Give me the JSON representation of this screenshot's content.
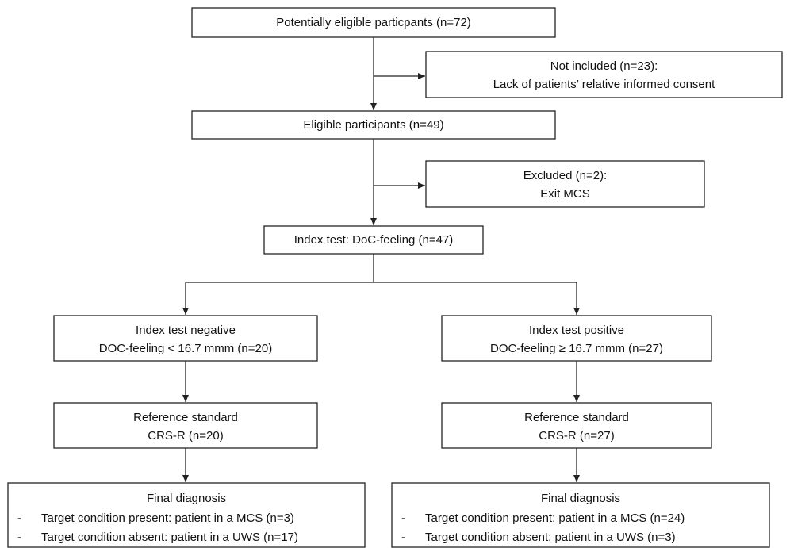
{
  "nodes": [
    {
      "lines": [
        "Potentially eligible particpants (n=72)"
      ]
    },
    {
      "lines": [
        "Not included (n=23):",
        "Lack of patients’ relative informed consent"
      ]
    },
    {
      "lines": [
        "Eligible participants (n=49)"
      ]
    },
    {
      "lines": [
        "Excluded (n=2):",
        "Exit MCS"
      ]
    },
    {
      "lines": [
        "Index test: DoC-feeling (n=47)"
      ]
    },
    {
      "lines": [
        "Index test negative",
        "DOC-feeling < 16.7 mmm (n=20)"
      ]
    },
    {
      "lines": [
        "Index test positive",
        "DOC-feeling ≥ 16.7 mmm (n=27)"
      ]
    },
    {
      "lines": [
        "Reference standard",
        "CRS-R (n=20)"
      ]
    },
    {
      "lines": [
        "Reference standard",
        "CRS-R (n=27)"
      ]
    },
    {
      "title": "Final diagnosis",
      "bullet": "-",
      "items": [
        "Target condition present: patient in a MCS (n=3)",
        "Target condition absent: patient in a UWS (n=17)"
      ]
    },
    {
      "title": "Final diagnosis",
      "bullet": "-",
      "items": [
        "Target condition present: patient in a MCS (n=24)",
        "Target condition absent: patient in a UWS (n=3)"
      ]
    }
  ]
}
